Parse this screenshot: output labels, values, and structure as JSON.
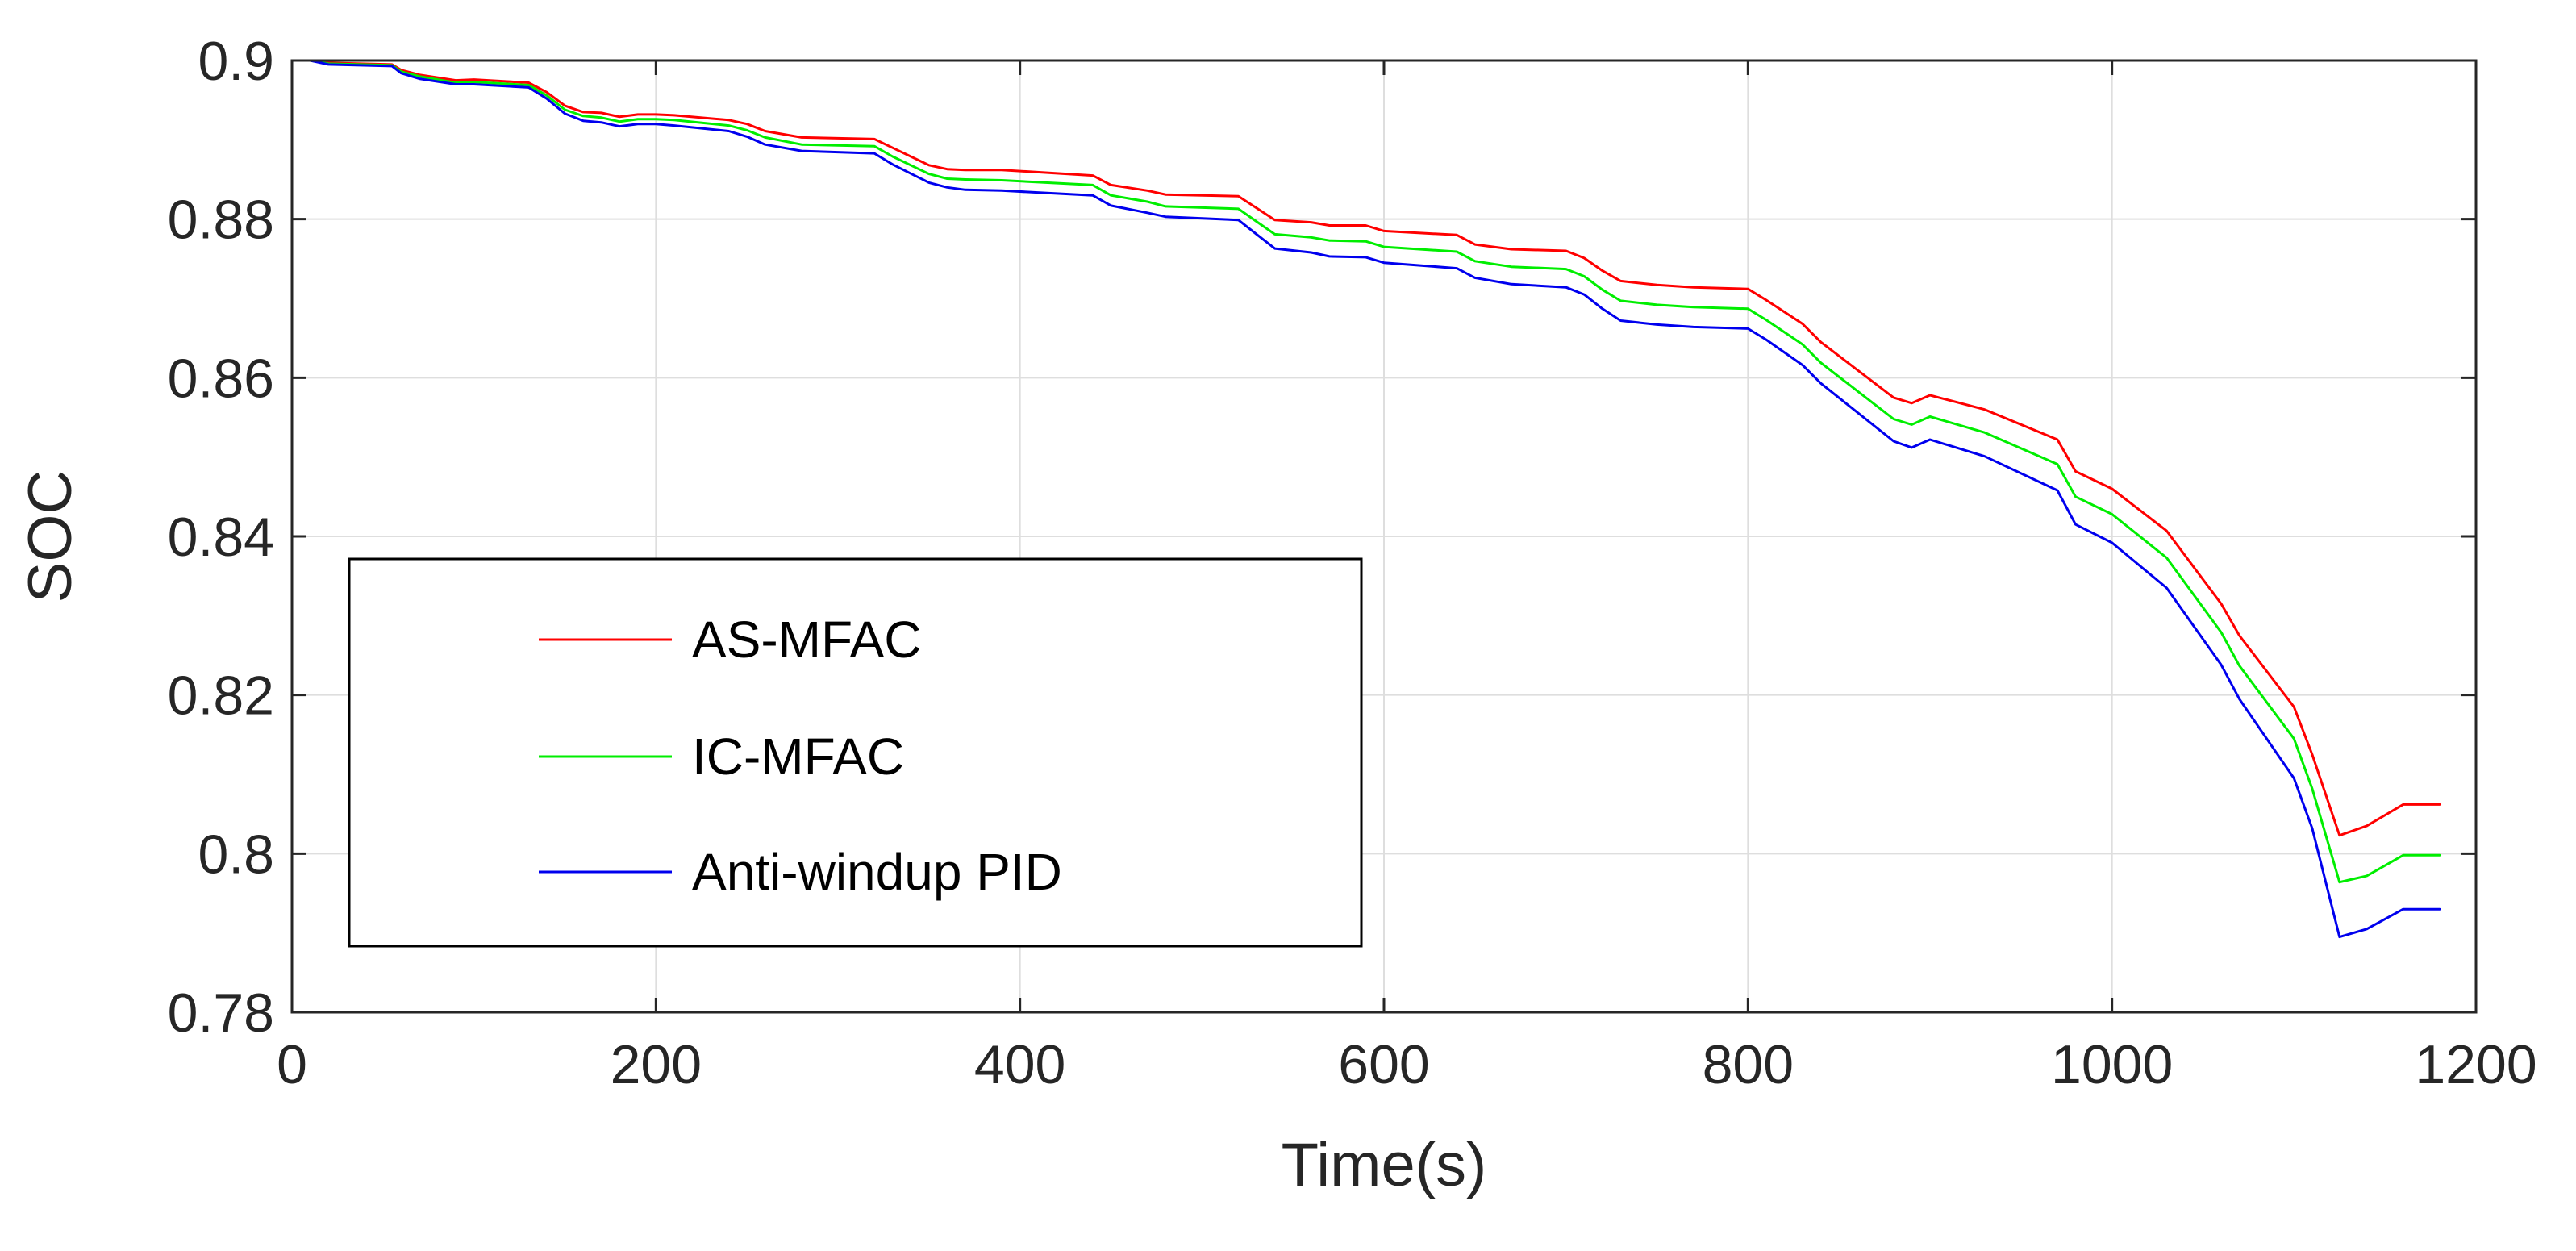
{
  "chart_data": {
    "type": "line",
    "title": "",
    "xlabel": "Time(s)",
    "ylabel": "SOC",
    "xlim": [
      0,
      1200
    ],
    "ylim": [
      0.78,
      0.9
    ],
    "xticks": [
      0,
      200,
      400,
      600,
      800,
      1000,
      1200
    ],
    "yticks": [
      0.78,
      0.8,
      0.82,
      0.84,
      0.86,
      0.88,
      0.9
    ],
    "xtick_labels": [
      "0",
      "200",
      "400",
      "600",
      "800",
      "1000",
      "1200"
    ],
    "ytick_labels": [
      "0.78",
      "0.8",
      "0.82",
      "0.84",
      "0.86",
      "0.88",
      "0.9"
    ],
    "grid": true,
    "legend_position": "center-left",
    "series": [
      {
        "name": "AS-MFAC",
        "color": "#ff0000",
        "x": [
          0,
          10,
          20,
          55,
          60,
          70,
          90,
          100,
          130,
          140,
          150,
          160,
          170,
          180,
          190,
          200,
          210,
          240,
          250,
          260,
          280,
          320,
          330,
          350,
          360,
          370,
          390,
          440,
          450,
          470,
          480,
          520,
          530,
          540,
          560,
          570,
          590,
          600,
          640,
          650,
          670,
          700,
          710,
          720,
          730,
          750,
          770,
          800,
          810,
          830,
          840,
          880,
          890,
          900,
          930,
          970,
          980,
          1000,
          1030,
          1060,
          1070,
          1100,
          1110,
          1125,
          1140,
          1160,
          1180
        ],
        "y": [
          0.9,
          0.9,
          0.8997,
          0.8995,
          0.8988,
          0.8982,
          0.8975,
          0.8976,
          0.8972,
          0.896,
          0.8943,
          0.8935,
          0.8934,
          0.8929,
          0.8932,
          0.8932,
          0.8931,
          0.8925,
          0.892,
          0.8911,
          0.8903,
          0.8901,
          0.889,
          0.8868,
          0.8863,
          0.8862,
          0.8862,
          0.8855,
          0.8843,
          0.8836,
          0.8831,
          0.8829,
          0.8814,
          0.8799,
          0.8796,
          0.8792,
          0.8792,
          0.8785,
          0.878,
          0.8768,
          0.8762,
          0.876,
          0.8751,
          0.8735,
          0.8722,
          0.8717,
          0.8714,
          0.8712,
          0.8698,
          0.8668,
          0.8645,
          0.8575,
          0.8568,
          0.8578,
          0.856,
          0.8522,
          0.8482,
          0.846,
          0.8407,
          0.8315,
          0.8275,
          0.8185,
          0.8125,
          0.8023,
          0.8035,
          0.8062,
          0.8062
        ]
      },
      {
        "name": "IC-MFAC",
        "color": "#00ee00",
        "x": [
          0,
          10,
          20,
          55,
          60,
          70,
          90,
          100,
          130,
          140,
          150,
          160,
          170,
          180,
          190,
          200,
          210,
          240,
          250,
          260,
          280,
          320,
          330,
          350,
          360,
          370,
          390,
          440,
          450,
          470,
          480,
          520,
          530,
          540,
          560,
          570,
          590,
          600,
          640,
          650,
          670,
          700,
          710,
          720,
          730,
          750,
          770,
          800,
          810,
          830,
          840,
          880,
          890,
          900,
          930,
          970,
          980,
          1000,
          1030,
          1060,
          1070,
          1100,
          1110,
          1125,
          1140,
          1160,
          1180
        ],
        "y": [
          0.9,
          0.9,
          0.8996,
          0.8994,
          0.8986,
          0.898,
          0.8972,
          0.8973,
          0.8969,
          0.8956,
          0.8938,
          0.893,
          0.8928,
          0.8923,
          0.8926,
          0.8926,
          0.8925,
          0.8918,
          0.8912,
          0.8903,
          0.8894,
          0.8892,
          0.8879,
          0.8857,
          0.8851,
          0.885,
          0.8849,
          0.8843,
          0.883,
          0.8822,
          0.8816,
          0.8813,
          0.8797,
          0.8781,
          0.8777,
          0.8773,
          0.8772,
          0.8765,
          0.8759,
          0.8747,
          0.874,
          0.8737,
          0.8728,
          0.8711,
          0.8697,
          0.8692,
          0.8689,
          0.8687,
          0.8673,
          0.8642,
          0.8619,
          0.8548,
          0.8541,
          0.8551,
          0.8531,
          0.8491,
          0.845,
          0.8428,
          0.8373,
          0.8279,
          0.8237,
          0.8145,
          0.8082,
          0.7964,
          0.7972,
          0.7998,
          0.7998
        ]
      },
      {
        "name": "Anti-windup PID",
        "color": "#0000ee",
        "x": [
          0,
          10,
          20,
          55,
          60,
          70,
          90,
          100,
          130,
          140,
          150,
          160,
          170,
          180,
          190,
          200,
          210,
          240,
          250,
          260,
          280,
          320,
          330,
          350,
          360,
          370,
          390,
          440,
          450,
          470,
          480,
          520,
          530,
          540,
          560,
          570,
          590,
          600,
          640,
          650,
          670,
          700,
          710,
          720,
          730,
          750,
          770,
          800,
          810,
          830,
          840,
          880,
          890,
          900,
          930,
          970,
          980,
          1000,
          1030,
          1060,
          1070,
          1100,
          1110,
          1125,
          1140,
          1160,
          1180
        ],
        "y": [
          0.9,
          0.9,
          0.8995,
          0.8993,
          0.8984,
          0.8977,
          0.897,
          0.897,
          0.8966,
          0.8952,
          0.8933,
          0.8924,
          0.8922,
          0.8917,
          0.892,
          0.892,
          0.8918,
          0.8911,
          0.8904,
          0.8894,
          0.8886,
          0.8883,
          0.8869,
          0.8846,
          0.884,
          0.8837,
          0.8836,
          0.883,
          0.8817,
          0.8808,
          0.8803,
          0.8799,
          0.8781,
          0.8763,
          0.8758,
          0.8753,
          0.8752,
          0.8745,
          0.8738,
          0.8726,
          0.8718,
          0.8714,
          0.8705,
          0.8687,
          0.8672,
          0.8667,
          0.8664,
          0.8662,
          0.8648,
          0.8616,
          0.8593,
          0.852,
          0.8512,
          0.8522,
          0.8501,
          0.8458,
          0.8415,
          0.8392,
          0.8335,
          0.8238,
          0.8195,
          0.8095,
          0.8032,
          0.7895,
          0.7905,
          0.793,
          0.793
        ]
      }
    ]
  }
}
